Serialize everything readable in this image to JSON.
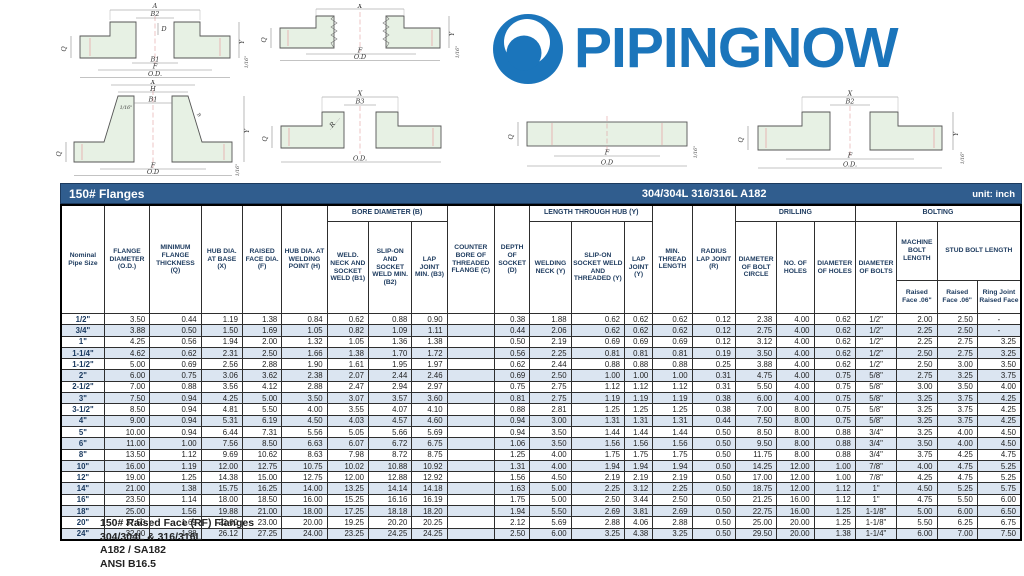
{
  "logo": {
    "text": "PIPINGNOW",
    "brand_blue": "#1b75bb"
  },
  "colors": {
    "title_bar": "#305d8e",
    "alt_row": "#dbe5f1",
    "header_text": "#1c3a5e"
  },
  "drawings": {
    "socket_weld": {
      "a": "A",
      "b2": "B2",
      "d": "D",
      "q": "Q",
      "y": "Y",
      "b1": "B1",
      "f": "F",
      "od": "O.D.",
      "sixteenth": "1/16\""
    },
    "threaded": {
      "x": "X",
      "q": "Q",
      "y": "Y",
      "f": "F",
      "od": "O.D",
      "sixteenth": "1/16\""
    },
    "weld_neck": {
      "x": "X",
      "h": "H",
      "b1": "B1",
      "r": "R",
      "q": "Q",
      "y": "Y",
      "f": "F",
      "od": "O.D",
      "s1": "1/16\"",
      "s2": "1/16\""
    },
    "lap_joint": {
      "x": "X",
      "b3": "B3",
      "r": "R",
      "q": "Q",
      "od": "O.D."
    },
    "blind": {
      "q": "Q",
      "f": "F",
      "od": "O.D",
      "sixteenth": "1/16\""
    },
    "slip_on": {
      "x": "X",
      "b2": "B2",
      "q": "Q",
      "y": "Y",
      "f": "F",
      "od": "O.D.",
      "sixteenth": "1/16\""
    }
  },
  "table": {
    "title_left": "150# Flanges",
    "title_center": "304/304L  316/316L  A182",
    "title_right": "unit: inch",
    "header": {
      "nps": "Nominal Pipe Size",
      "od": "FLANGE DIAMETER (O.D.)",
      "q": "MINIMUM FLANGE THICKNESS (Q)",
      "x": "HUB DIA. AT BASE (X)",
      "f": "RAISED FACE DIA. (F)",
      "h": "HUB DIA. AT WELDING POINT (H)",
      "bore_group": "BORE DIAMETER (B)",
      "b1": "WELD. NECK AND SOCKET WELD (B1)",
      "b2": "SLIP-ON AND SOCKET WELD MIN. (B2)",
      "b3": "LAP JOINT MIN. (B3)",
      "c": "COUNTER BORE OF THREADED FLANGE (C)",
      "d": "DEPTH OF SOCKET (D)",
      "length_group": "LENGTH THROUGH HUB (Y)",
      "wn": "WELDING NECK (Y)",
      "so": "SLIP-ON SOCKET WELD AND THREADED (Y)",
      "lj": "LAP JOINT (Y)",
      "mt": "MIN. THREAD LENGTH",
      "r": "RADIUS LAP JOINT (R)",
      "drilling_group": "DRILLING",
      "bc": "DIAMETER OF BOLT CIRCLE",
      "nh": "NO. OF HOLES",
      "dh": "DIAMETER OF HOLES",
      "bolting_group": "BOLTING",
      "db": "DIAMETER OF BOLTS",
      "mbl": "MACHINE BOLT LENGTH",
      "sbl": "STUD BOLT LENGTH",
      "mbl_rf": "Raised Face .06\"",
      "sbl_rf": "Raised Face .06\"",
      "sbl_rj": "Ring Joint Raised Face"
    },
    "rows": [
      [
        "1/2\"",
        "3.50",
        "0.44",
        "1.19",
        "1.38",
        "0.84",
        "0.62",
        "0.88",
        "0.90",
        "",
        "0.38",
        "1.88",
        "0.62",
        "0.62",
        "0.62",
        "0.12",
        "2.38",
        "4.00",
        "0.62",
        "1/2\"",
        "2.00",
        "2.50",
        "-"
      ],
      [
        "3/4\"",
        "3.88",
        "0.50",
        "1.50",
        "1.69",
        "1.05",
        "0.82",
        "1.09",
        "1.11",
        "",
        "0.44",
        "2.06",
        "0.62",
        "0.62",
        "0.62",
        "0.12",
        "2.75",
        "4.00",
        "0.62",
        "1/2\"",
        "2.25",
        "2.50",
        "-"
      ],
      [
        "1\"",
        "4.25",
        "0.56",
        "1.94",
        "2.00",
        "1.32",
        "1.05",
        "1.36",
        "1.38",
        "",
        "0.50",
        "2.19",
        "0.69",
        "0.69",
        "0.69",
        "0.12",
        "3.12",
        "4.00",
        "0.62",
        "1/2\"",
        "2.25",
        "2.75",
        "3.25"
      ],
      [
        "1-1/4\"",
        "4.62",
        "0.62",
        "2.31",
        "2.50",
        "1.66",
        "1.38",
        "1.70",
        "1.72",
        "",
        "0.56",
        "2.25",
        "0.81",
        "0.81",
        "0.81",
        "0.19",
        "3.50",
        "4.00",
        "0.62",
        "1/2\"",
        "2.50",
        "2.75",
        "3.25"
      ],
      [
        "1-1/2\"",
        "5.00",
        "0.69",
        "2.56",
        "2.88",
        "1.90",
        "1.61",
        "1.95",
        "1.97",
        "",
        "0.62",
        "2.44",
        "0.88",
        "0.88",
        "0.88",
        "0.25",
        "3.88",
        "4.00",
        "0.62",
        "1/2\"",
        "2.50",
        "3.00",
        "3.50"
      ],
      [
        "2\"",
        "6.00",
        "0.75",
        "3.06",
        "3.62",
        "2.38",
        "2.07",
        "2.44",
        "2.46",
        "",
        "0.69",
        "2.50",
        "1.00",
        "1.00",
        "1.00",
        "0.31",
        "4.75",
        "4.00",
        "0.75",
        "5/8\"",
        "2.75",
        "3.25",
        "3.75"
      ],
      [
        "2-1/2\"",
        "7.00",
        "0.88",
        "3.56",
        "4.12",
        "2.88",
        "2.47",
        "2.94",
        "2.97",
        "",
        "0.75",
        "2.75",
        "1.12",
        "1.12",
        "1.12",
        "0.31",
        "5.50",
        "4.00",
        "0.75",
        "5/8\"",
        "3.00",
        "3.50",
        "4.00"
      ],
      [
        "3\"",
        "7.50",
        "0.94",
        "4.25",
        "5.00",
        "3.50",
        "3.07",
        "3.57",
        "3.60",
        "",
        "0.81",
        "2.75",
        "1.19",
        "1.19",
        "1.19",
        "0.38",
        "6.00",
        "4.00",
        "0.75",
        "5/8\"",
        "3.25",
        "3.75",
        "4.25"
      ],
      [
        "3-1/2\"",
        "8.50",
        "0.94",
        "4.81",
        "5.50",
        "4.00",
        "3.55",
        "4.07",
        "4.10",
        "",
        "0.88",
        "2.81",
        "1.25",
        "1.25",
        "1.25",
        "0.38",
        "7.00",
        "8.00",
        "0.75",
        "5/8\"",
        "3.25",
        "3.75",
        "4.25"
      ],
      [
        "4\"",
        "9.00",
        "0.94",
        "5.31",
        "6.19",
        "4.50",
        "4.03",
        "4.57",
        "4.60",
        "",
        "0.94",
        "3.00",
        "1.31",
        "1.31",
        "1.31",
        "0.44",
        "7.50",
        "8.00",
        "0.75",
        "5/8\"",
        "3.25",
        "3.75",
        "4.25"
      ],
      [
        "5\"",
        "10.00",
        "0.94",
        "6.44",
        "7.31",
        "5.56",
        "5.05",
        "5.66",
        "5.69",
        "",
        "0.94",
        "3.50",
        "1.44",
        "1.44",
        "1.44",
        "0.50",
        "8.50",
        "8.00",
        "0.88",
        "3/4\"",
        "3.25",
        "4.00",
        "4.50"
      ],
      [
        "6\"",
        "11.00",
        "1.00",
        "7.56",
        "8.50",
        "6.63",
        "6.07",
        "6.72",
        "6.75",
        "",
        "1.06",
        "3.50",
        "1.56",
        "1.56",
        "1.56",
        "0.50",
        "9.50",
        "8.00",
        "0.88",
        "3/4\"",
        "3.50",
        "4.00",
        "4.50"
      ],
      [
        "8\"",
        "13.50",
        "1.12",
        "9.69",
        "10.62",
        "8.63",
        "7.98",
        "8.72",
        "8.75",
        "",
        "1.25",
        "4.00",
        "1.75",
        "1.75",
        "1.75",
        "0.50",
        "11.75",
        "8.00",
        "0.88",
        "3/4\"",
        "3.75",
        "4.25",
        "4.75"
      ],
      [
        "10\"",
        "16.00",
        "1.19",
        "12.00",
        "12.75",
        "10.75",
        "10.02",
        "10.88",
        "10.92",
        "",
        "1.31",
        "4.00",
        "1.94",
        "1.94",
        "1.94",
        "0.50",
        "14.25",
        "12.00",
        "1.00",
        "7/8\"",
        "4.00",
        "4.75",
        "5.25"
      ],
      [
        "12\"",
        "19.00",
        "1.25",
        "14.38",
        "15.00",
        "12.75",
        "12.00",
        "12.88",
        "12.92",
        "",
        "1.56",
        "4.50",
        "2.19",
        "2.19",
        "2.19",
        "0.50",
        "17.00",
        "12.00",
        "1.00",
        "7/8\"",
        "4.25",
        "4.75",
        "5.25"
      ],
      [
        "14\"",
        "21.00",
        "1.38",
        "15.75",
        "16.25",
        "14.00",
        "13.25",
        "14.14",
        "14.18",
        "",
        "1.63",
        "5.00",
        "2.25",
        "3.12",
        "2.25",
        "0.50",
        "18.75",
        "12.00",
        "1.12",
        "1\"",
        "4.50",
        "5.25",
        "5.75"
      ],
      [
        "16\"",
        "23.50",
        "1.14",
        "18.00",
        "18.50",
        "16.00",
        "15.25",
        "16.16",
        "16.19",
        "",
        "1.75",
        "5.00",
        "2.50",
        "3.44",
        "2.50",
        "0.50",
        "21.25",
        "16.00",
        "1.12",
        "1\"",
        "4.75",
        "5.50",
        "6.00"
      ],
      [
        "18\"",
        "25.00",
        "1.56",
        "19.88",
        "21.00",
        "18.00",
        "17.25",
        "18.18",
        "18.20",
        "",
        "1.94",
        "5.50",
        "2.69",
        "3.81",
        "2.69",
        "0.50",
        "22.75",
        "16.00",
        "1.25",
        "1-1/8\"",
        "5.00",
        "6.00",
        "6.50"
      ],
      [
        "20\"",
        "27.50",
        "1.69",
        "22.00",
        "23.00",
        "20.00",
        "19.25",
        "20.20",
        "20.25",
        "",
        "2.12",
        "5.69",
        "2.88",
        "4.06",
        "2.88",
        "0.50",
        "25.00",
        "20.00",
        "1.25",
        "1-1/8\"",
        "5.50",
        "6.25",
        "6.75"
      ],
      [
        "24\"",
        "32.00",
        "1.88",
        "26.12",
        "27.25",
        "24.00",
        "23.25",
        "24.25",
        "24.25",
        "",
        "2.50",
        "6.00",
        "3.25",
        "4.38",
        "3.25",
        "0.50",
        "29.50",
        "20.00",
        "1.38",
        "1-1/4\"",
        "6.00",
        "7.00",
        "7.50"
      ]
    ]
  },
  "footer": {
    "lines": [
      "150# Raised Face (RF) Flanges",
      "304/304L & 316/316L",
      "A182 / SA182",
      "ANSI B16.5"
    ]
  }
}
